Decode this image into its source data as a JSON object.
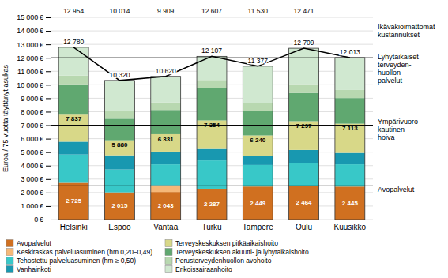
{
  "chart_data": {
    "type": "bar",
    "stacked": true,
    "grid": true,
    "legend": "bottom",
    "ylabel": "Euroa / 75 vuotta täyttänyt asukas",
    "categories": [
      "Helsinki",
      "Espoo",
      "Vantaa",
      "Turku",
      "Tampere",
      "Oulu",
      "Kuusikko"
    ],
    "series": [
      {
        "name": "Avopalvelut",
        "color": "#d07020",
        "values": [
          2725,
          2015,
          2043,
          2287,
          2449,
          2464,
          2445
        ],
        "data_labels": true,
        "value_labels": [
          "2 725",
          "2 015",
          "2 043",
          "2 287",
          "2 449",
          "2 464",
          "2 445"
        ]
      },
      {
        "name": "Keskiraskas palveluasuminen (hm 0,20–0,49)",
        "color": "#f5b878",
        "values": [
          0,
          0,
          500,
          0,
          0,
          0,
          0
        ]
      },
      {
        "name": "Tehostettu palveluasuminen (hm ≥ 0,50)",
        "color": "#38c8c8",
        "values": [
          2100,
          1700,
          1550,
          2100,
          1600,
          1750,
          1650
        ]
      },
      {
        "name": "Vanhainkoti",
        "color": "#1898b0",
        "values": [
          950,
          1050,
          950,
          850,
          650,
          950,
          850
        ]
      },
      {
        "name": "Terveyskeskuksen pitkäaikaishoito",
        "color": "#d8d888",
        "values": [
          2062,
          1115,
          1288,
          2117,
          1541,
          2133,
          2168
        ]
      },
      {
        "name": "Terveyskeskuksen akuutti- ja lyhytaikaishoito",
        "color": "#60a870",
        "values": [
          2200,
          1600,
          1800,
          2400,
          1800,
          2100,
          1900
        ]
      },
      {
        "name": "Perusterveydenhuollon avohoito",
        "color": "#b8d8b0",
        "values": [
          650,
          550,
          550,
          600,
          600,
          650,
          600
        ]
      },
      {
        "name": "Erikoissairaanhoito",
        "color": "#d0e8d0",
        "values": [
          2093,
          2290,
          1939,
          1753,
          2737,
          2662,
          2400
        ]
      },
      {
        "type": "line",
        "color": "#000000",
        "values": [
          12780,
          10320,
          10620,
          12107,
          11377,
          12709,
          12013
        ],
        "data_labels": true,
        "value_labels": [
          "12 780",
          "10 320",
          "10 620",
          "12 107",
          "11 377",
          "12 709",
          "12 013"
        ]
      }
    ],
    "hlines": [
      2500,
      7000,
      12000
    ],
    "ylim": [
      0,
      15000
    ],
    "yticks": [
      {
        "value": 0,
        "label": "0 €"
      },
      {
        "value": 1000,
        "label": "1 000 €"
      },
      {
        "value": 2000,
        "label": "2 000 €"
      },
      {
        "value": 3000,
        "label": "3 000 €"
      },
      {
        "value": 4000,
        "label": "4 000 €"
      },
      {
        "value": 5000,
        "label": "5 000 €"
      },
      {
        "value": 6000,
        "label": "6 000 €"
      },
      {
        "value": 7000,
        "label": "7 000 €"
      },
      {
        "value": 8000,
        "label": "8 000 €"
      },
      {
        "value": 9000,
        "label": "9 000 €"
      },
      {
        "value": 10000,
        "label": "10 000 €"
      },
      {
        "value": 11000,
        "label": "11 000 €"
      },
      {
        "value": 12000,
        "label": "12 000 €"
      },
      {
        "value": 13000,
        "label": "13 000 €"
      },
      {
        "value": 14000,
        "label": "14 000 €"
      },
      {
        "value": 15000,
        "label": "15 000 €"
      }
    ],
    "annotations": [
      {
        "text": "7 837",
        "x": "Helsinki",
        "y": 7837
      },
      {
        "text": "5 880",
        "x": "Espoo",
        "y": 5880
      },
      {
        "text": "6 331",
        "x": "Vantaa",
        "y": 6331
      },
      {
        "text": "7 354",
        "x": "Turku",
        "y": 7354
      },
      {
        "text": "6 240",
        "x": "Tampere",
        "y": 6240
      },
      {
        "text": "7 297",
        "x": "Oulu",
        "y": 7297
      },
      {
        "text": "7 113",
        "x": "Kuusikko",
        "y": 7113
      },
      {
        "text": "12 954",
        "x": "Helsinki"
      },
      {
        "text": "10 014",
        "x": "Espoo"
      },
      {
        "text": "9 909",
        "x": "Vantaa"
      },
      {
        "text": "12 607",
        "x": "Turku"
      },
      {
        "text": "11 530",
        "x": "Tampere"
      },
      {
        "text": "12 471",
        "x": "Oulu"
      },
      {
        "text": "Ikävakioimattomat\nkustannukset",
        "y": 14000
      },
      {
        "text": "Lyhytaikaiset\nterveyden-\nhuollon\npalvelut",
        "y": 11200
      },
      {
        "text": "Ympärivuoro-\nkautinen\nhoiva",
        "y": 6700
      },
      {
        "text": "Avopalvelut",
        "y": 2200
      }
    ]
  }
}
